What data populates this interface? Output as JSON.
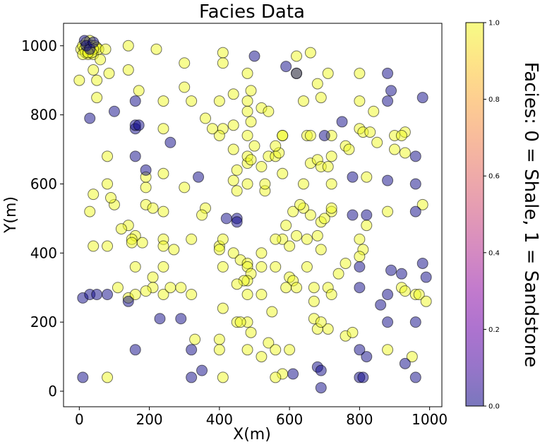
{
  "chart_data": {
    "type": "scatter",
    "title": "Facies Data",
    "xlabel": "X(m)",
    "ylabel": "Y(m)",
    "colorbar_label": "Facies: 0 = Shale, 1 = Sandstone",
    "xlim": [
      -45,
      1035
    ],
    "ylim": [
      -45,
      1065
    ],
    "x_ticks": [
      0,
      200,
      400,
      600,
      800,
      1000
    ],
    "y_ticks": [
      0,
      200,
      400,
      600,
      800,
      1000
    ],
    "colorbar_ticks": [
      0.0,
      0.2,
      0.4,
      0.6,
      0.8,
      1.0
    ],
    "colorbar_tick_labels": [
      "0.0",
      "0.2",
      "0.4",
      "0.6",
      "0.8",
      "1.0"
    ],
    "colormap": "plasma",
    "marker_alpha": 0.5,
    "grid": false,
    "legend": "none",
    "colors": {
      "shale": "#0d0887",
      "sandstone": "#f0f921",
      "marker_edge": "#000000"
    },
    "series": [
      {
        "facies": 1,
        "points": [
          [
            0,
            900
          ],
          [
            5,
            990
          ],
          [
            10,
            1000
          ],
          [
            15,
            990
          ],
          [
            18,
            980
          ],
          [
            20,
            1010
          ],
          [
            25,
            975
          ],
          [
            30,
            1015
          ],
          [
            35,
            1000
          ],
          [
            40,
            975
          ],
          [
            45,
            1000
          ],
          [
            50,
            995
          ],
          [
            55,
            990
          ],
          [
            60,
            960
          ],
          [
            75,
            990
          ],
          [
            30,
            995
          ],
          [
            40,
            990
          ],
          [
            35,
            980
          ],
          [
            10,
            975
          ],
          [
            25,
            980
          ],
          [
            40,
            930
          ],
          [
            50,
            900
          ],
          [
            50,
            850
          ],
          [
            85,
            920
          ],
          [
            140,
            1000
          ],
          [
            220,
            990
          ],
          [
            140,
            930
          ],
          [
            170,
            870
          ],
          [
            240,
            840
          ],
          [
            300,
            950
          ],
          [
            300,
            880
          ],
          [
            320,
            840
          ],
          [
            410,
            980
          ],
          [
            410,
            950
          ],
          [
            400,
            840
          ],
          [
            440,
            860
          ],
          [
            480,
            920
          ],
          [
            490,
            870
          ],
          [
            520,
            820
          ],
          [
            480,
            840
          ],
          [
            480,
            810
          ],
          [
            490,
            780
          ],
          [
            500,
            710
          ],
          [
            480,
            740
          ],
          [
            440,
            700
          ],
          [
            440,
            770
          ],
          [
            410,
            760
          ],
          [
            400,
            740
          ],
          [
            380,
            760
          ],
          [
            360,
            790
          ],
          [
            360,
            530
          ],
          [
            350,
            510
          ],
          [
            320,
            440
          ],
          [
            400,
            420
          ],
          [
            400,
            410
          ],
          [
            410,
            440
          ],
          [
            440,
            400
          ],
          [
            460,
            380
          ],
          [
            410,
            360
          ],
          [
            480,
            370
          ],
          [
            480,
            360
          ],
          [
            490,
            340
          ],
          [
            480,
            320
          ],
          [
            470,
            320
          ],
          [
            450,
            310
          ],
          [
            410,
            240
          ],
          [
            450,
            200
          ],
          [
            480,
            200
          ],
          [
            460,
            200
          ],
          [
            490,
            170
          ],
          [
            480,
            120
          ],
          [
            520,
            100
          ],
          [
            540,
            140
          ],
          [
            560,
            120
          ],
          [
            580,
            50
          ],
          [
            560,
            40
          ],
          [
            600,
            120
          ],
          [
            620,
            450
          ],
          [
            610,
            520
          ],
          [
            590,
            480
          ],
          [
            580,
            440
          ],
          [
            560,
            440
          ],
          [
            520,
            400
          ],
          [
            520,
            360
          ],
          [
            560,
            360
          ],
          [
            600,
            420
          ],
          [
            600,
            330
          ],
          [
            610,
            320
          ],
          [
            590,
            300
          ],
          [
            620,
            300
          ],
          [
            550,
            230
          ],
          [
            480,
            280
          ],
          [
            520,
            280
          ],
          [
            450,
            580
          ],
          [
            440,
            610
          ],
          [
            450,
            640
          ],
          [
            480,
            600
          ],
          [
            480,
            660
          ],
          [
            480,
            680
          ],
          [
            490,
            670
          ],
          [
            520,
            650
          ],
          [
            530,
            580
          ],
          [
            530,
            600
          ],
          [
            540,
            680
          ],
          [
            560,
            680
          ],
          [
            570,
            690
          ],
          [
            580,
            630
          ],
          [
            580,
            740
          ],
          [
            640,
            600
          ],
          [
            660,
            660
          ],
          [
            680,
            670
          ],
          [
            690,
            650
          ],
          [
            720,
            680
          ],
          [
            690,
            490
          ],
          [
            690,
            410
          ],
          [
            680,
            450
          ],
          [
            660,
            510
          ],
          [
            640,
            530
          ],
          [
            630,
            540
          ],
          [
            650,
            440
          ],
          [
            650,
            360
          ],
          [
            670,
            300
          ],
          [
            670,
            260
          ],
          [
            670,
            210
          ],
          [
            680,
            180
          ],
          [
            710,
            180
          ],
          [
            710,
            300
          ],
          [
            720,
            280
          ],
          [
            740,
            340
          ],
          [
            760,
            370
          ],
          [
            760,
            160
          ],
          [
            780,
            170
          ],
          [
            810,
            410
          ],
          [
            800,
            440
          ],
          [
            800,
            390
          ],
          [
            820,
            480
          ],
          [
            820,
            620
          ],
          [
            800,
            760
          ],
          [
            800,
            840
          ],
          [
            800,
            920
          ],
          [
            810,
            750
          ],
          [
            830,
            750
          ],
          [
            850,
            720
          ],
          [
            840,
            810
          ],
          [
            900,
            740
          ],
          [
            930,
            750
          ],
          [
            920,
            740
          ],
          [
            930,
            690
          ],
          [
            900,
            700
          ],
          [
            880,
            520
          ],
          [
            920,
            300
          ],
          [
            930,
            290
          ],
          [
            960,
            280
          ],
          [
            970,
            280
          ],
          [
            990,
            260
          ],
          [
            980,
            540
          ],
          [
            950,
            100
          ],
          [
            880,
            120
          ],
          [
            710,
            920
          ],
          [
            690,
            850
          ],
          [
            680,
            890
          ],
          [
            620,
            970
          ],
          [
            660,
            980
          ],
          [
            640,
            840
          ],
          [
            650,
            740
          ],
          [
            720,
            740
          ],
          [
            710,
            650
          ],
          [
            760,
            710
          ],
          [
            770,
            700
          ],
          [
            720,
            600
          ],
          [
            720,
            520
          ],
          [
            720,
            530
          ],
          [
            700,
            500
          ],
          [
            690,
            200
          ],
          [
            660,
            740
          ],
          [
            620,
            920
          ],
          [
            560,
            710
          ],
          [
            540,
            810
          ],
          [
            580,
            740
          ],
          [
            160,
            450
          ],
          [
            150,
            440
          ],
          [
            150,
            430
          ],
          [
            140,
            480
          ],
          [
            120,
            470
          ],
          [
            100,
            540
          ],
          [
            90,
            560
          ],
          [
            80,
            600
          ],
          [
            80,
            680
          ],
          [
            40,
            570
          ],
          [
            30,
            520
          ],
          [
            40,
            420
          ],
          [
            80,
            420
          ],
          [
            110,
            300
          ],
          [
            140,
            270
          ],
          [
            160,
            280
          ],
          [
            160,
            360
          ],
          [
            180,
            430
          ],
          [
            190,
            540
          ],
          [
            190,
            590
          ],
          [
            190,
            620
          ],
          [
            210,
            530
          ],
          [
            240,
            520
          ],
          [
            240,
            440
          ],
          [
            240,
            420
          ],
          [
            240,
            360
          ],
          [
            240,
            280
          ],
          [
            270,
            410
          ],
          [
            260,
            300
          ],
          [
            290,
            300
          ],
          [
            320,
            280
          ],
          [
            210,
            330
          ],
          [
            210,
            300
          ],
          [
            190,
            290
          ],
          [
            240,
            630
          ],
          [
            240,
            760
          ],
          [
            300,
            590
          ],
          [
            330,
            150
          ],
          [
            400,
            150
          ],
          [
            400,
            120
          ],
          [
            410,
            40
          ],
          [
            80,
            40
          ]
        ]
      },
      {
        "facies": 0,
        "points": [
          [
            15,
            1015
          ],
          [
            20,
            1000
          ],
          [
            30,
            990
          ],
          [
            40,
            1010
          ],
          [
            30,
            790
          ],
          [
            100,
            810
          ],
          [
            160,
            840
          ],
          [
            160,
            760
          ],
          [
            160,
            770
          ],
          [
            170,
            770
          ],
          [
            160,
            680
          ],
          [
            190,
            640
          ],
          [
            260,
            720
          ],
          [
            340,
            620
          ],
          [
            420,
            500
          ],
          [
            450,
            500
          ],
          [
            450,
            490
          ],
          [
            10,
            270
          ],
          [
            30,
            280
          ],
          [
            50,
            280
          ],
          [
            80,
            280
          ],
          [
            140,
            260
          ],
          [
            160,
            120
          ],
          [
            230,
            210
          ],
          [
            290,
            210
          ],
          [
            320,
            120
          ],
          [
            320,
            40
          ],
          [
            350,
            60
          ],
          [
            10,
            40
          ],
          [
            500,
            970
          ],
          [
            590,
            940
          ],
          [
            620,
            920
          ],
          [
            700,
            740
          ],
          [
            750,
            780
          ],
          [
            780,
            620
          ],
          [
            780,
            510
          ],
          [
            820,
            510
          ],
          [
            800,
            360
          ],
          [
            800,
            300
          ],
          [
            820,
            100
          ],
          [
            800,
            120
          ],
          [
            800,
            40
          ],
          [
            810,
            40
          ],
          [
            880,
            610
          ],
          [
            880,
            840
          ],
          [
            880,
            920
          ],
          [
            890,
            870
          ],
          [
            960,
            680
          ],
          [
            960,
            600
          ],
          [
            960,
            520
          ],
          [
            980,
            370
          ],
          [
            990,
            330
          ],
          [
            960,
            200
          ],
          [
            960,
            40
          ],
          [
            930,
            80
          ],
          [
            920,
            340
          ],
          [
            890,
            350
          ],
          [
            880,
            280
          ],
          [
            880,
            200
          ],
          [
            860,
            250
          ],
          [
            980,
            850
          ],
          [
            610,
            50
          ],
          [
            680,
            70
          ],
          [
            690,
            60
          ],
          [
            690,
            10
          ]
        ]
      }
    ]
  }
}
